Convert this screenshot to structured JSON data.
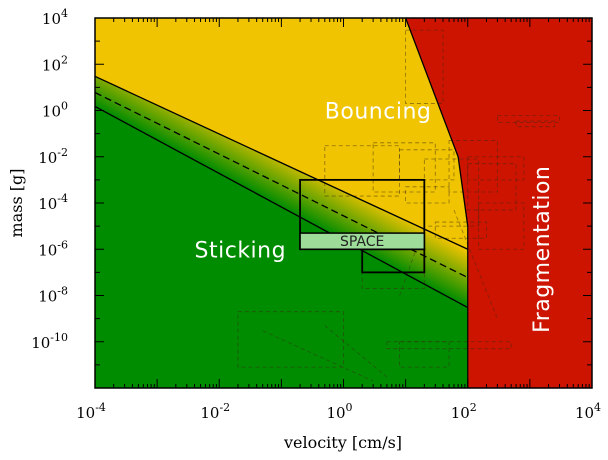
{
  "chart_data": {
    "type": "area",
    "xlabel": "velocity [cm/s]",
    "ylabel": "mass [g]",
    "xscale": "log",
    "yscale": "log",
    "xlim": [
      0.0001,
      10000
    ],
    "ylim": [
      1e-12,
      10000
    ],
    "x_ticks": [
      {
        "value": 0.0001,
        "base": "10",
        "exp": "-4"
      },
      {
        "value": 0.01,
        "base": "10",
        "exp": "-2"
      },
      {
        "value": 1,
        "base": "10",
        "exp": "0"
      },
      {
        "value": 100,
        "base": "10",
        "exp": "2"
      },
      {
        "value": 10000,
        "base": "10",
        "exp": "4"
      }
    ],
    "y_ticks": [
      {
        "value": 10000,
        "base": "10",
        "exp": "4"
      },
      {
        "value": 100,
        "base": "10",
        "exp": "2"
      },
      {
        "value": 1,
        "base": "10",
        "exp": "0"
      },
      {
        "value": 0.01,
        "base": "10",
        "exp": "-2"
      },
      {
        "value": 0.0001,
        "base": "10",
        "exp": "-4"
      },
      {
        "value": 1e-06,
        "base": "10",
        "exp": "-6"
      },
      {
        "value": 1e-08,
        "base": "10",
        "exp": "-8"
      },
      {
        "value": 1e-10,
        "base": "10",
        "exp": "-10"
      }
    ],
    "regions": [
      {
        "name": "Sticking",
        "color": "#008c00",
        "label_at": [
          0.004,
          1e-06
        ]
      },
      {
        "name": "Bouncing",
        "color": "#f0c400",
        "label_at": [
          0.5,
          1
        ]
      },
      {
        "name": "Fragmentation",
        "color": "#cc1400",
        "label_at": [
          1500,
          1e-06
        ]
      }
    ],
    "boundaries": {
      "sticking_upper": {
        "x": [
          0.0001,
          100
        ],
        "y": [
          1.5,
          3e-09
        ],
        "style": "solid"
      },
      "bouncing_lower": {
        "x": [
          0.0001,
          100
        ],
        "y": [
          30,
          1e-06
        ],
        "style": "solid"
      },
      "mid_line": {
        "x": [
          0.0001,
          100
        ],
        "y": [
          6,
          6e-08
        ],
        "style": "dashed"
      },
      "fragmentation": {
        "x": [
          10,
          70,
          100
        ],
        "y": [
          10000,
          0.01,
          1e-05
        ],
        "style": "solid"
      },
      "v_frag": {
        "x": 100
      }
    },
    "highlight_boxes": [
      {
        "x": [
          0.2,
          20
        ],
        "y": [
          1e-06,
          0.001
        ],
        "style": "solid"
      },
      {
        "x": [
          2,
          20
        ],
        "y": [
          1e-07,
          1e-06
        ],
        "style": "solid"
      }
    ],
    "space_box": {
      "x": [
        0.2,
        20
      ],
      "y": [
        1e-06,
        5e-06
      ],
      "label": "SPACE"
    },
    "experiment_boxes": [
      {
        "x": [
          10,
          40
        ],
        "y": [
          2,
          3000
        ]
      },
      {
        "x": [
          0.5,
          8
        ],
        "y": [
          0.0002,
          0.03
        ]
      },
      {
        "x": [
          3,
          30
        ],
        "y": [
          0.0003,
          0.04
        ]
      },
      {
        "x": [
          8,
          60
        ],
        "y": [
          0.001,
          0.02
        ]
      },
      {
        "x": [
          20,
          150
        ],
        "y": [
          1e-05,
          0.008
        ]
      },
      {
        "x": [
          50,
          300
        ],
        "y": [
          0.0003,
          0.05
        ]
      },
      {
        "x": [
          100,
          600
        ],
        "y": [
          5e-05,
          0.005
        ]
      },
      {
        "x": [
          150,
          800
        ],
        "y": [
          1e-06,
          0.0001
        ]
      },
      {
        "x": [
          300,
          3000
        ],
        "y": [
          0.3,
          0.6
        ]
      },
      {
        "x": [
          600,
          2500
        ],
        "y": [
          0.2,
          0.35
        ]
      },
      {
        "x": [
          10,
          50
        ],
        "y": [
          0.0001,
          0.0005
        ]
      },
      {
        "x": [
          30,
          200
        ],
        "y": [
          3e-06,
          1.5e-05
        ]
      },
      {
        "x": [
          0.02,
          1
        ],
        "y": [
          8e-12,
          2e-09
        ]
      },
      {
        "x": [
          8,
          50
        ],
        "y": [
          8e-12,
          1e-10
        ]
      },
      {
        "x": [
          5,
          500
        ],
        "y": [
          5e-11,
          1e-10
        ]
      },
      {
        "x": [
          2,
          20
        ],
        "y": [
          2e-08,
          1e-07
        ]
      },
      {
        "x": [
          100,
          800
        ],
        "y": [
          0.001,
          0.01
        ]
      }
    ],
    "grid": false
  },
  "colors": {
    "sticking": "#008c00",
    "bouncing": "#f0c400",
    "fragmentation": "#cc1400",
    "space_fill": "#9edc9a"
  }
}
